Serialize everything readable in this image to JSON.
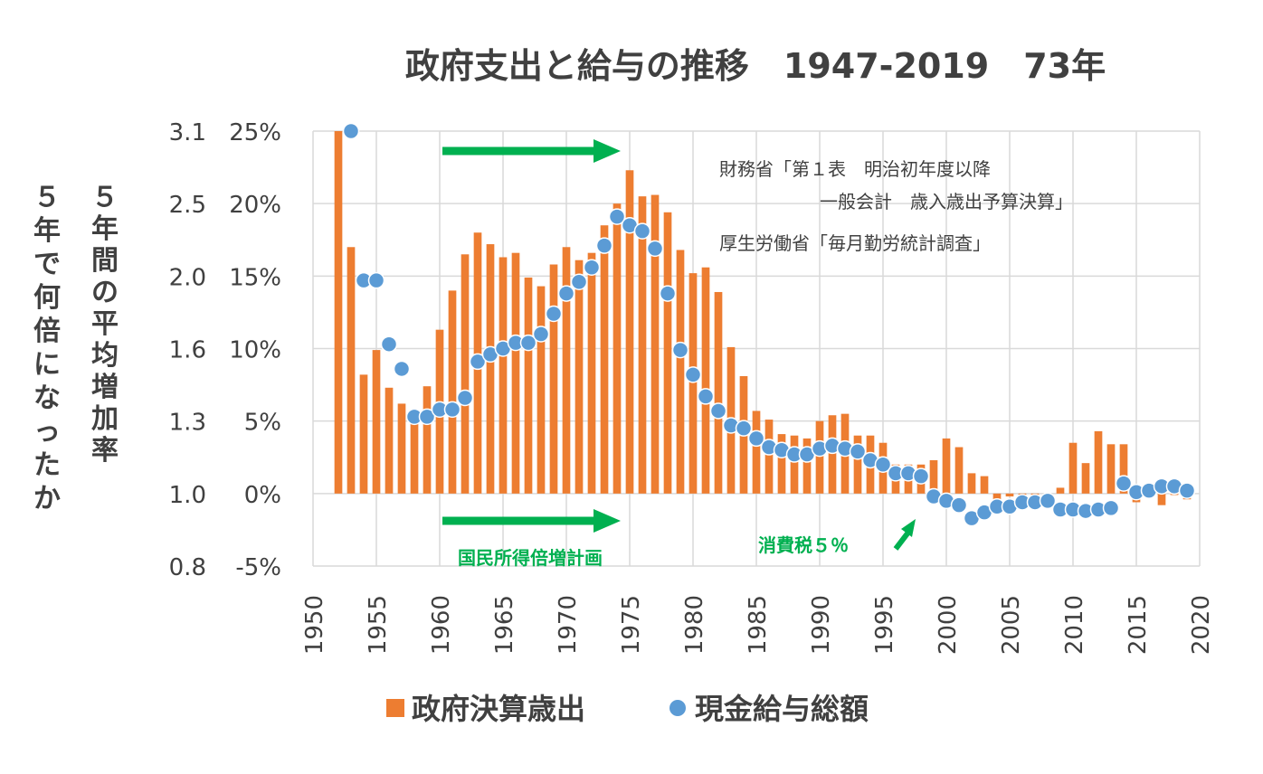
{
  "chart_data": {
    "type": "bar",
    "title": "政府支出と給与の推移　1947-2019　73年",
    "left_axis_label_outer": "５年で何倍になったか",
    "left_axis_label_inner": "５年間の平均増加率",
    "ylim": [
      -5,
      25
    ],
    "y_ticks": [
      "25%",
      "20%",
      "15%",
      "10%",
      "5%",
      "0%",
      "-5%"
    ],
    "y_multiplier_ticks": [
      "3.1",
      "2.5",
      "2.0",
      "1.6",
      "1.3",
      "1.0",
      "0.8"
    ],
    "xlim": [
      1950,
      2020
    ],
    "x_ticks": [
      "1950",
      "1955",
      "1960",
      "1965",
      "1970",
      "1975",
      "1980",
      "1985",
      "1990",
      "1995",
      "2000",
      "2005",
      "2010",
      "2015",
      "2020"
    ],
    "grid": true,
    "legend_position": "bottom",
    "series": [
      {
        "name": "政府決算歳出",
        "kind": "bar",
        "color": "#ed7d31",
        "x": [
          1952,
          1953,
          1954,
          1955,
          1956,
          1957,
          1958,
          1959,
          1960,
          1961,
          1962,
          1963,
          1964,
          1965,
          1966,
          1967,
          1968,
          1969,
          1970,
          1971,
          1972,
          1973,
          1974,
          1975,
          1976,
          1977,
          1978,
          1979,
          1980,
          1981,
          1982,
          1983,
          1984,
          1985,
          1986,
          1987,
          1988,
          1989,
          1990,
          1991,
          1992,
          1993,
          1994,
          1995,
          1996,
          1997,
          1998,
          1999,
          2000,
          2001,
          2002,
          2003,
          2004,
          2005,
          2006,
          2007,
          2008,
          2009,
          2010,
          2011,
          2012,
          2013,
          2014,
          2015,
          2016,
          2017,
          2018,
          2019
        ],
        "values": [
          25.0,
          17.0,
          8.2,
          9.9,
          7.3,
          6.2,
          5.4,
          7.4,
          11.3,
          14.0,
          16.5,
          18.0,
          17.2,
          16.3,
          16.6,
          14.9,
          14.3,
          15.8,
          17.0,
          16.1,
          16.6,
          18.5,
          20.0,
          22.3,
          20.5,
          20.6,
          19.4,
          16.8,
          15.2,
          15.6,
          13.9,
          10.1,
          8.1,
          5.7,
          5.1,
          4.1,
          4.0,
          3.8,
          5.0,
          5.4,
          5.5,
          4.0,
          4.0,
          3.5,
          2.0,
          2.0,
          2.0,
          2.3,
          3.8,
          3.2,
          1.4,
          1.2,
          -0.6,
          -0.2,
          -0.3,
          -0.2,
          -0.2,
          0.4,
          3.5,
          2.1,
          4.3,
          3.4,
          3.4,
          -0.6,
          0.1,
          -0.8,
          -0.1,
          -0.4
        ]
      },
      {
        "name": "現金給与総額",
        "kind": "scatter",
        "color": "#5b9bd5",
        "x": [
          1953,
          1954,
          1955,
          1956,
          1957,
          1958,
          1959,
          1960,
          1961,
          1962,
          1963,
          1964,
          1965,
          1966,
          1967,
          1968,
          1969,
          1970,
          1971,
          1972,
          1973,
          1974,
          1975,
          1976,
          1977,
          1978,
          1979,
          1980,
          1981,
          1982,
          1983,
          1984,
          1985,
          1986,
          1987,
          1988,
          1989,
          1990,
          1991,
          1992,
          1993,
          1994,
          1995,
          1996,
          1997,
          1998,
          1999,
          2000,
          2001,
          2002,
          2003,
          2004,
          2005,
          2006,
          2007,
          2008,
          2009,
          2010,
          2011,
          2012,
          2013,
          2014,
          2015,
          2016,
          2017,
          2018,
          2019
        ],
        "values": [
          25.0,
          14.7,
          14.7,
          10.3,
          8.6,
          5.3,
          5.3,
          5.8,
          5.8,
          6.6,
          9.1,
          9.6,
          10.0,
          10.4,
          10.4,
          11.0,
          12.4,
          13.8,
          14.6,
          15.6,
          17.1,
          19.1,
          18.5,
          18.1,
          16.9,
          13.8,
          9.9,
          8.2,
          6.7,
          5.7,
          4.7,
          4.5,
          3.8,
          3.2,
          3.0,
          2.7,
          2.7,
          3.1,
          3.3,
          3.1,
          2.9,
          2.3,
          2.0,
          1.4,
          1.4,
          1.2,
          -0.2,
          -0.5,
          -0.8,
          -1.7,
          -1.3,
          -0.9,
          -0.9,
          -0.6,
          -0.6,
          -0.5,
          -1.1,
          -1.1,
          -1.2,
          -1.1,
          -1.0,
          0.7,
          0.1,
          0.2,
          0.5,
          0.5,
          0.2
        ]
      }
    ],
    "source_notes": [
      "財務省「第１表　明治初年度以降",
      "一般会計　歳入歳出予算決算」",
      "厚生労働省「毎月勤労統計調査」"
    ],
    "annotations": {
      "arrow_plan_label": "国民所得倍増計画",
      "tax_label": "消費税５％"
    },
    "annotation_color": "#00b050"
  }
}
